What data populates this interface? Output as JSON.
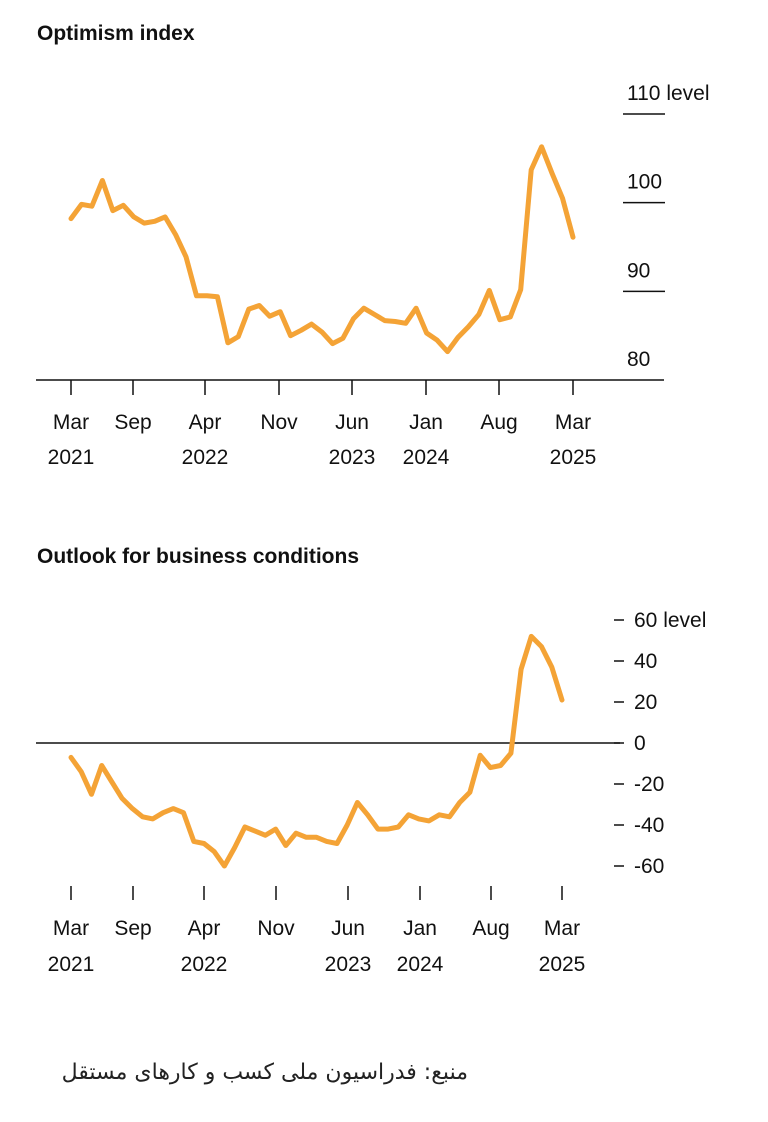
{
  "source_text": "منبع: فدراسیون ملی کسب و کارهای مستقل",
  "chart_data": [
    {
      "type": "line",
      "title": "Optimism index",
      "y_unit_label": "level",
      "ylim": [
        80,
        110
      ],
      "yticks": [
        80,
        90,
        100,
        110
      ],
      "y_tick_labels": [
        "80",
        "90",
        "100",
        "110 level"
      ],
      "x_ticks": [
        {
          "line1": "Mar",
          "line2": "2021"
        },
        {
          "line1": "Sep",
          "line2": ""
        },
        {
          "line1": "Apr",
          "line2": "2022"
        },
        {
          "line1": "Nov",
          "line2": ""
        },
        {
          "line1": "Jun",
          "line2": "2023"
        },
        {
          "line1": "Jan",
          "line2": "2024"
        },
        {
          "line1": "Aug",
          "line2": ""
        },
        {
          "line1": "Mar",
          "line2": "2025"
        }
      ],
      "color": "#f4a336",
      "series": [
        {
          "values": [
            98.2,
            99.8,
            99.6,
            102.5,
            99.1,
            99.7,
            98.4,
            97.7,
            97.9,
            98.4,
            96.4,
            93.9,
            89.5,
            89.5,
            89.4,
            84.2,
            84.9,
            88.0,
            88.4,
            87.2,
            87.7,
            85.0,
            85.6,
            86.3,
            85.4,
            84.1,
            84.7,
            86.9,
            88.1,
            87.4,
            86.7,
            86.6,
            86.4,
            88.1,
            85.3,
            84.5,
            83.2,
            84.8,
            86.0,
            87.4,
            90.1,
            86.8,
            87.1,
            90.2,
            103.7,
            106.3,
            103.3,
            100.5,
            96.1
          ]
        }
      ]
    },
    {
      "type": "line",
      "title": "Outlook for business conditions",
      "y_unit_label": "level",
      "ylim": [
        -60,
        60
      ],
      "yticks": [
        -60,
        -40,
        -20,
        0,
        20,
        40,
        60
      ],
      "y_tick_labels": [
        "-60",
        "-40",
        "-20",
        "0",
        "20",
        "40",
        "60 level"
      ],
      "x_ticks": [
        {
          "line1": "Mar",
          "line2": "2021"
        },
        {
          "line1": "Sep",
          "line2": ""
        },
        {
          "line1": "Apr",
          "line2": "2022"
        },
        {
          "line1": "Nov",
          "line2": ""
        },
        {
          "line1": "Jun",
          "line2": "2023"
        },
        {
          "line1": "Jan",
          "line2": "2024"
        },
        {
          "line1": "Aug",
          "line2": ""
        },
        {
          "line1": "Mar",
          "line2": "2025"
        }
      ],
      "color": "#f4a336",
      "series": [
        {
          "values": [
            -7,
            -14,
            -25,
            -11,
            -19,
            -27,
            -32,
            -36,
            -37,
            -34,
            -32,
            -34,
            -48,
            -49,
            -53,
            -60,
            -51,
            -41,
            -43,
            -45,
            -42,
            -50,
            -44,
            -46,
            -46,
            -48,
            -49,
            -40,
            -29,
            -35,
            -42,
            -42,
            -41,
            -35,
            -37,
            -38,
            -35,
            -36,
            -29,
            -24,
            -6,
            -12,
            -11,
            -5,
            36,
            52,
            47,
            37,
            21
          ]
        }
      ]
    }
  ]
}
